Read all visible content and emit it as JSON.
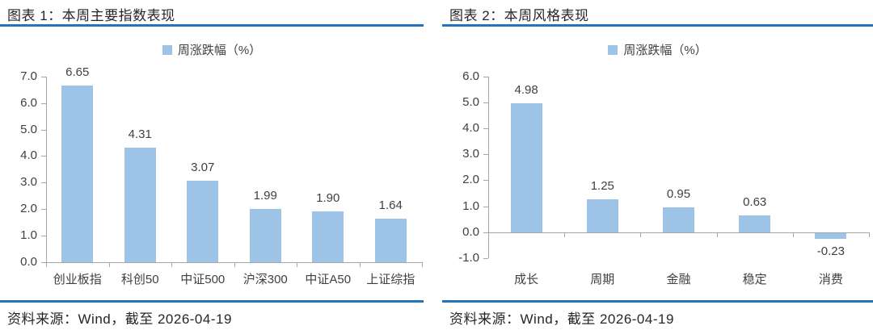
{
  "colors": {
    "accent_blue": "#2274BD",
    "bar_fill": "#9DC3E6",
    "axis_gray": "#A6A6A6",
    "title_text": "#262626",
    "chart_text": "#404040"
  },
  "chart_data": [
    {
      "type": "bar",
      "title": "图表 1：本周主要指数表现",
      "legend": "周涨跌幅（%）",
      "legend_position": "top-center",
      "grid": false,
      "categories": [
        "创业板指",
        "科创50",
        "中证500",
        "沪深300",
        "中证A50",
        "上证综指"
      ],
      "values": [
        6.65,
        4.31,
        3.07,
        1.99,
        1.9,
        1.64
      ],
      "value_labels": [
        "6.65",
        "4.31",
        "3.07",
        "1.99",
        "1.90",
        "1.64"
      ],
      "ylim": [
        0,
        7
      ],
      "ytick_step": 1,
      "ytick_labels": [
        "7.0",
        "6.0",
        "5.0",
        "4.0",
        "3.0",
        "2.0",
        "1.0",
        "0.0"
      ],
      "bar_color": "#9DC3E6",
      "source": "资料来源：Wind，截至 2026-04-19"
    },
    {
      "type": "bar",
      "title": "图表 2：本周风格表现",
      "legend": "周涨跌幅（%）",
      "legend_position": "top-center",
      "grid": false,
      "categories": [
        "成长",
        "周期",
        "金融",
        "稳定",
        "消费"
      ],
      "values": [
        4.98,
        1.25,
        0.95,
        0.63,
        -0.23
      ],
      "value_labels": [
        "4.98",
        "1.25",
        "0.95",
        "0.63",
        "-0.23"
      ],
      "ylim": [
        -1,
        6
      ],
      "ytick_step": 1,
      "ytick_labels": [
        "6.0",
        "5.0",
        "4.0",
        "3.0",
        "2.0",
        "1.0",
        "0.0",
        "-1.0"
      ],
      "bar_color": "#9DC3E6",
      "source": "资料来源：Wind，截至 2026-04-19"
    }
  ]
}
